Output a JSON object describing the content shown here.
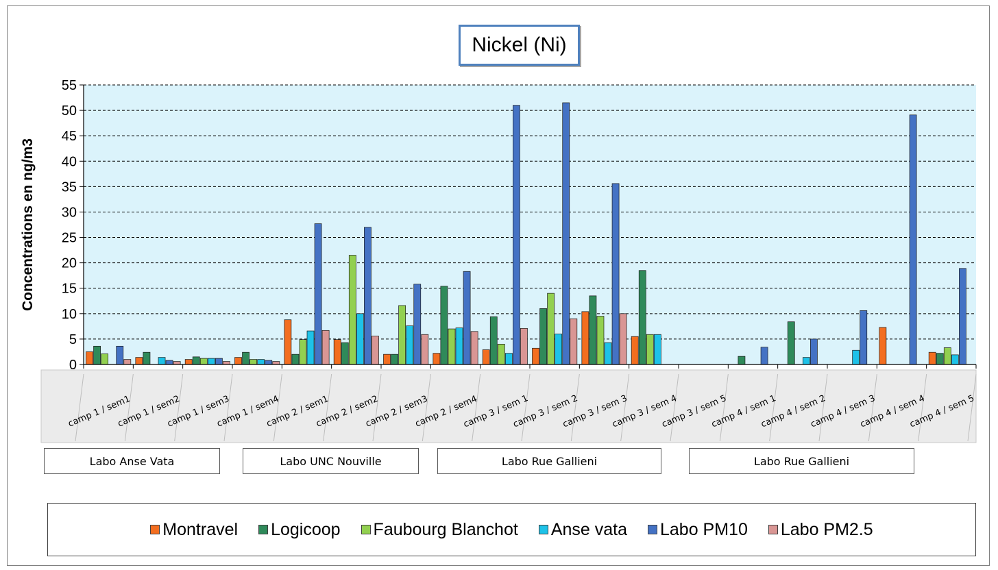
{
  "chart_data": {
    "type": "bar",
    "title": "Nickel (Ni)",
    "ylabel": "Concentrations en ng/m3",
    "xlabel": "",
    "ylim": [
      0,
      55
    ],
    "yticks": [
      0,
      5,
      10,
      15,
      20,
      25,
      30,
      35,
      40,
      45,
      50,
      55
    ],
    "grid": "horizontal dashed",
    "legend": "bottom",
    "categories": [
      "camp 1 / sem1",
      "camp 1 / sem2",
      "camp 1 / sem3",
      "camp 1 / sem4",
      "camp 2 / sem1",
      "camp 2 / sem2",
      "camp 2 / sem3",
      "camp 2 / sem4",
      "camp 3 / sem 1",
      "camp 3 / sem 2",
      "camp 3 / sem 3",
      "camp 3 / sem 4",
      "camp 3 / sem 5",
      "camp 4 / sem 1",
      "camp 4 / sem 2",
      "camp 4 / sem 3",
      "camp 4 / sem 4",
      "camp 4 / sem 5"
    ],
    "groups": [
      "Labo Anse Vata",
      "Labo UNC Nouville",
      "Labo Rue Gallieni",
      "Labo Rue Gallieni"
    ],
    "series": [
      {
        "name": "Montravel",
        "color": "#f36e20",
        "values": [
          2.5,
          1.4,
          1.0,
          1.4,
          8.8,
          4.9,
          2.0,
          2.2,
          2.9,
          3.2,
          10.4,
          5.5,
          null,
          null,
          null,
          null,
          7.3,
          2.4
        ]
      },
      {
        "name": "Logicoop",
        "color": "#2f8a5a",
        "values": [
          3.6,
          2.4,
          1.5,
          2.4,
          2.0,
          4.3,
          2.0,
          15.4,
          9.4,
          11.0,
          13.5,
          18.5,
          null,
          1.6,
          8.4,
          null,
          null,
          2.2
        ]
      },
      {
        "name": "Faubourg Blanchot",
        "color": "#92d050",
        "values": [
          2.1,
          null,
          1.2,
          1.0,
          4.9,
          21.5,
          11.6,
          7.0,
          4.0,
          14.0,
          9.5,
          5.9,
          null,
          null,
          null,
          null,
          null,
          3.3
        ]
      },
      {
        "name": "Anse vata",
        "color": "#1ec2e8",
        "values": [
          null,
          1.4,
          1.2,
          1.0,
          6.6,
          10.0,
          7.6,
          7.2,
          2.2,
          6.0,
          4.3,
          5.9,
          null,
          null,
          1.4,
          2.8,
          null,
          1.9
        ]
      },
      {
        "name": "Labo PM10",
        "color": "#4472c4",
        "values": [
          3.6,
          0.8,
          1.2,
          0.8,
          27.7,
          27.0,
          15.8,
          18.3,
          51.0,
          51.5,
          35.6,
          null,
          null,
          3.4,
          5.0,
          10.6,
          49.1,
          18.9
        ]
      },
      {
        "name": "Labo PM2.5",
        "color": "#d99694",
        "values": [
          1.0,
          0.6,
          0.6,
          0.6,
          6.7,
          5.6,
          5.9,
          6.5,
          7.1,
          9.0,
          10.0,
          null,
          null,
          null,
          null,
          null,
          null,
          null
        ]
      }
    ]
  }
}
